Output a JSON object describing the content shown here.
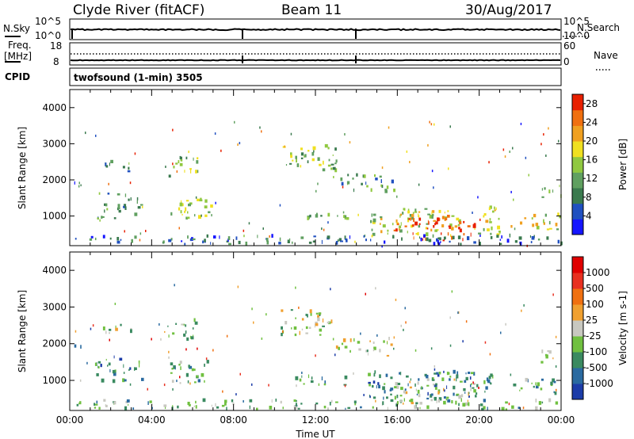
{
  "header": {
    "station": "Clyde River (fitACF)",
    "beam": "Beam 11",
    "date": "30/Aug/2017"
  },
  "nsky_panel": {
    "left_label": "N.Sky",
    "right_label": "N.Search",
    "left_ticks": [
      "10^5",
      "10^0"
    ],
    "right_ticks": [
      "10^5",
      "10^0"
    ]
  },
  "freq_panel": {
    "left_label_line1": "Freq.",
    "left_label_line2": "[MHz]",
    "right_label": "Nave",
    "left_ticks": [
      "18",
      "8"
    ],
    "right_ticks": [
      "60",
      "0"
    ]
  },
  "cpid": {
    "label": "CPID",
    "program": "twofsound (1-min) 3505"
  },
  "colors": {
    "frame": "#000000",
    "ground_scatter": "#c8c8c0"
  },
  "chart_data": [
    {
      "type": "heatmap",
      "quantity": "Power",
      "ylabel": "Slant Range [km]",
      "xlabel": "",
      "ylim": [
        180,
        4500
      ],
      "yticks": [
        "1000",
        "2000",
        "3000",
        "4000"
      ],
      "xlim_hours": [
        0,
        24
      ],
      "colorbar": {
        "label": "Power [dB]",
        "ticks": [
          "4",
          "8",
          "12",
          "16",
          "20",
          "24",
          "28"
        ],
        "range": [
          0,
          30
        ],
        "colors": [
          "#1515ff",
          "#2050c0",
          "#3a7a4e",
          "#60a060",
          "#90c840",
          "#f0e020",
          "#f0a020",
          "#f07010",
          "#e82000"
        ]
      },
      "regions": [
        {
          "t0": 0.1,
          "t1": 0.6,
          "r0": 1800,
          "r1": 2050,
          "level": 0.15
        },
        {
          "t0": 1.5,
          "t1": 3.2,
          "r0": 2200,
          "r1": 2500,
          "level": 0.3
        },
        {
          "t0": 1.2,
          "t1": 3.5,
          "r0": 900,
          "r1": 1600,
          "level": 0.35
        },
        {
          "t0": 4.5,
          "t1": 6.2,
          "r0": 2050,
          "r1": 2600,
          "level": 0.45
        },
        {
          "t0": 4.8,
          "t1": 7.0,
          "r0": 900,
          "r1": 1500,
          "level": 0.5
        },
        {
          "t0": 10.2,
          "t1": 13.0,
          "r0": 2200,
          "r1": 2900,
          "level": 0.45
        },
        {
          "t0": 13.0,
          "t1": 15.8,
          "r0": 1600,
          "r1": 2100,
          "level": 0.35
        },
        {
          "t0": 11.0,
          "t1": 13.8,
          "r0": 850,
          "r1": 1100,
          "level": 0.4
        },
        {
          "t0": 14.5,
          "t1": 21.0,
          "r0": 400,
          "r1": 1200,
          "level": 0.55
        },
        {
          "t0": 15.8,
          "t1": 19.8,
          "r0": 300,
          "r1": 1000,
          "level": 0.9
        },
        {
          "t0": 21.5,
          "t1": 24.0,
          "r0": 600,
          "r1": 1000,
          "level": 0.6
        },
        {
          "t0": 23.0,
          "t1": 24.0,
          "r0": 1400,
          "r1": 1800,
          "level": 0.45
        },
        {
          "t0": 0.0,
          "t1": 24.0,
          "r0": 180,
          "r1": 420,
          "level": 0.25
        }
      ]
    },
    {
      "type": "heatmap",
      "quantity": "Velocity",
      "ylabel": "Slant Range [km]",
      "xlabel": "Time UT",
      "ylim": [
        180,
        4500
      ],
      "yticks": [
        "1000",
        "2000",
        "3000",
        "4000"
      ],
      "xticks": [
        "00:00",
        "04:00",
        "08:00",
        "12:00",
        "16:00",
        "20:00",
        "00:00"
      ],
      "xlim_hours": [
        0,
        24
      ],
      "colorbar": {
        "label": "Velocity [m s-1]",
        "ticks": [
          "1000",
          "500",
          "100",
          "25",
          "-25",
          "-100",
          "-500",
          "-1000"
        ],
        "colors": [
          "#1c3ca8",
          "#2a6aa0",
          "#3a8a60",
          "#70c040",
          "#c8c8c0",
          "#f0a030",
          "#f07010",
          "#e83020",
          "#e00000"
        ]
      },
      "regions": [
        {
          "t0": 0.1,
          "t1": 0.6,
          "r0": 1800,
          "r1": 2050,
          "level": 0.1
        },
        {
          "t0": 1.5,
          "t1": 3.2,
          "r0": 2200,
          "r1": 2500,
          "level": 0.45
        },
        {
          "t0": 1.2,
          "t1": 3.5,
          "r0": 900,
          "r1": 1600,
          "level": 0.25
        },
        {
          "t0": 4.5,
          "t1": 6.2,
          "r0": 2050,
          "r1": 2600,
          "level": 0.45
        },
        {
          "t0": 4.8,
          "t1": 7.0,
          "r0": 900,
          "r1": 1500,
          "level": 0.35
        },
        {
          "t0": 10.2,
          "t1": 13.0,
          "r0": 2200,
          "r1": 2900,
          "level": 0.45
        },
        {
          "t0": 13.0,
          "t1": 15.8,
          "r0": 1600,
          "r1": 2100,
          "level": 0.45
        },
        {
          "t0": 11.0,
          "t1": 13.8,
          "r0": 850,
          "r1": 1100,
          "level": 0.3
        },
        {
          "t0": 14.5,
          "t1": 21.0,
          "r0": 400,
          "r1": 1200,
          "level": 0.25
        },
        {
          "t0": 15.8,
          "t1": 19.8,
          "r0": 300,
          "r1": 1000,
          "level": 0.45
        },
        {
          "t0": 21.5,
          "t1": 24.0,
          "r0": 600,
          "r1": 1000,
          "level": 0.3
        },
        {
          "t0": 23.0,
          "t1": 24.0,
          "r0": 1400,
          "r1": 1800,
          "level": 0.45
        },
        {
          "t0": 0.0,
          "t1": 24.0,
          "r0": 180,
          "r1": 420,
          "level": 0.35
        }
      ]
    }
  ]
}
